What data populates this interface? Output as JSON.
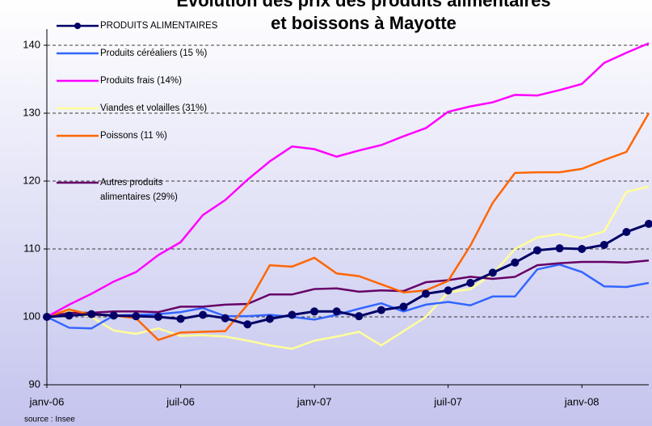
{
  "chart_data": {
    "type": "line",
    "title": [
      "Evolution des prix des produits alimentaires",
      "et boissons à Mayotte"
    ],
    "source": "source : Insee",
    "categories": [
      "janv-06",
      null,
      null,
      null,
      null,
      null,
      "juil-06",
      null,
      null,
      null,
      null,
      null,
      "janv-07",
      null,
      null,
      null,
      null,
      null,
      "juil-07",
      null,
      null,
      null,
      null,
      null,
      "janv-08",
      null,
      null,
      null
    ],
    "series": [
      {
        "name": "PRODUITS ALIMENTAIRES",
        "color": "#000066",
        "marker": "circle",
        "values": [
          100,
          100.2,
          100.4,
          100.2,
          100.1,
          100,
          99.7,
          100.3,
          99.8,
          98.9,
          99.7,
          100.3,
          100.8,
          100.8,
          100.1,
          101,
          101.5,
          103.4,
          103.9,
          105,
          106.5,
          108,
          109.8,
          110.1,
          110,
          110.6,
          112.5,
          113.7
        ]
      },
      {
        "name": "Produits céréaliers (15 %)",
        "color": "#3366ff",
        "values": [
          100,
          98.4,
          98.3,
          100.2,
          100.3,
          100.4,
          100.7,
          101.3,
          100.1,
          100.1,
          100.3,
          100,
          99.6,
          100.3,
          101.2,
          102,
          100.8,
          101.8,
          102.2,
          101.7,
          103,
          103,
          107,
          107.7,
          106.6,
          104.5,
          104.4,
          105
        ]
      },
      {
        "name": "Produits frais (14%)",
        "color": "#ff00ff",
        "values": [
          100,
          101.8,
          103.4,
          105.2,
          106.6,
          109.1,
          111,
          115,
          117.2,
          120.2,
          122.9,
          125.1,
          124.7,
          123.6,
          124.5,
          125.3,
          126.6,
          127.8,
          130.2,
          131,
          131.6,
          132.7,
          132.6,
          133.4,
          134.3,
          137.4,
          138.9,
          140.3
        ]
      },
      {
        "name": "Viandes et volailles (31%)",
        "color": "#ffff99",
        "values": [
          100,
          100.8,
          100,
          98,
          97.5,
          98.3,
          97.2,
          97.3,
          97.1,
          96.5,
          95.8,
          95.3,
          96.5,
          97.1,
          97.8,
          95.8,
          97.9,
          100,
          103.6,
          104.1,
          106.3,
          110,
          111.7,
          112.2,
          111.6,
          112.6,
          118.4,
          119.2
        ]
      },
      {
        "name": "Poissons (11 %)",
        "color": "#ff6600",
        "values": [
          100,
          101.1,
          100.3,
          100.2,
          99.8,
          96.6,
          97.7,
          97.8,
          97.9,
          101.8,
          107.6,
          107.4,
          108.7,
          106.4,
          106,
          104.8,
          103.6,
          103.9,
          105.3,
          110.5,
          116.8,
          121.2,
          121.3,
          121.3,
          121.8,
          123.1,
          124.3,
          130
        ]
      },
      {
        "name": "Autres produits alimentaires (29%)",
        "color": "#660066",
        "values": [
          100,
          100.6,
          100.6,
          100.8,
          100.8,
          100.7,
          101.5,
          101.5,
          101.8,
          101.9,
          103.3,
          103.3,
          104.1,
          104.2,
          103.7,
          103.9,
          103.8,
          105.1,
          105.4,
          105.9,
          105.6,
          105.9,
          107.6,
          107.9,
          108.1,
          108.1,
          108,
          108.3
        ]
      }
    ],
    "ylim": [
      90,
      140
    ],
    "yticks": [
      90,
      100,
      110,
      120,
      130,
      140
    ],
    "grid": true,
    "legend": "top-left"
  }
}
